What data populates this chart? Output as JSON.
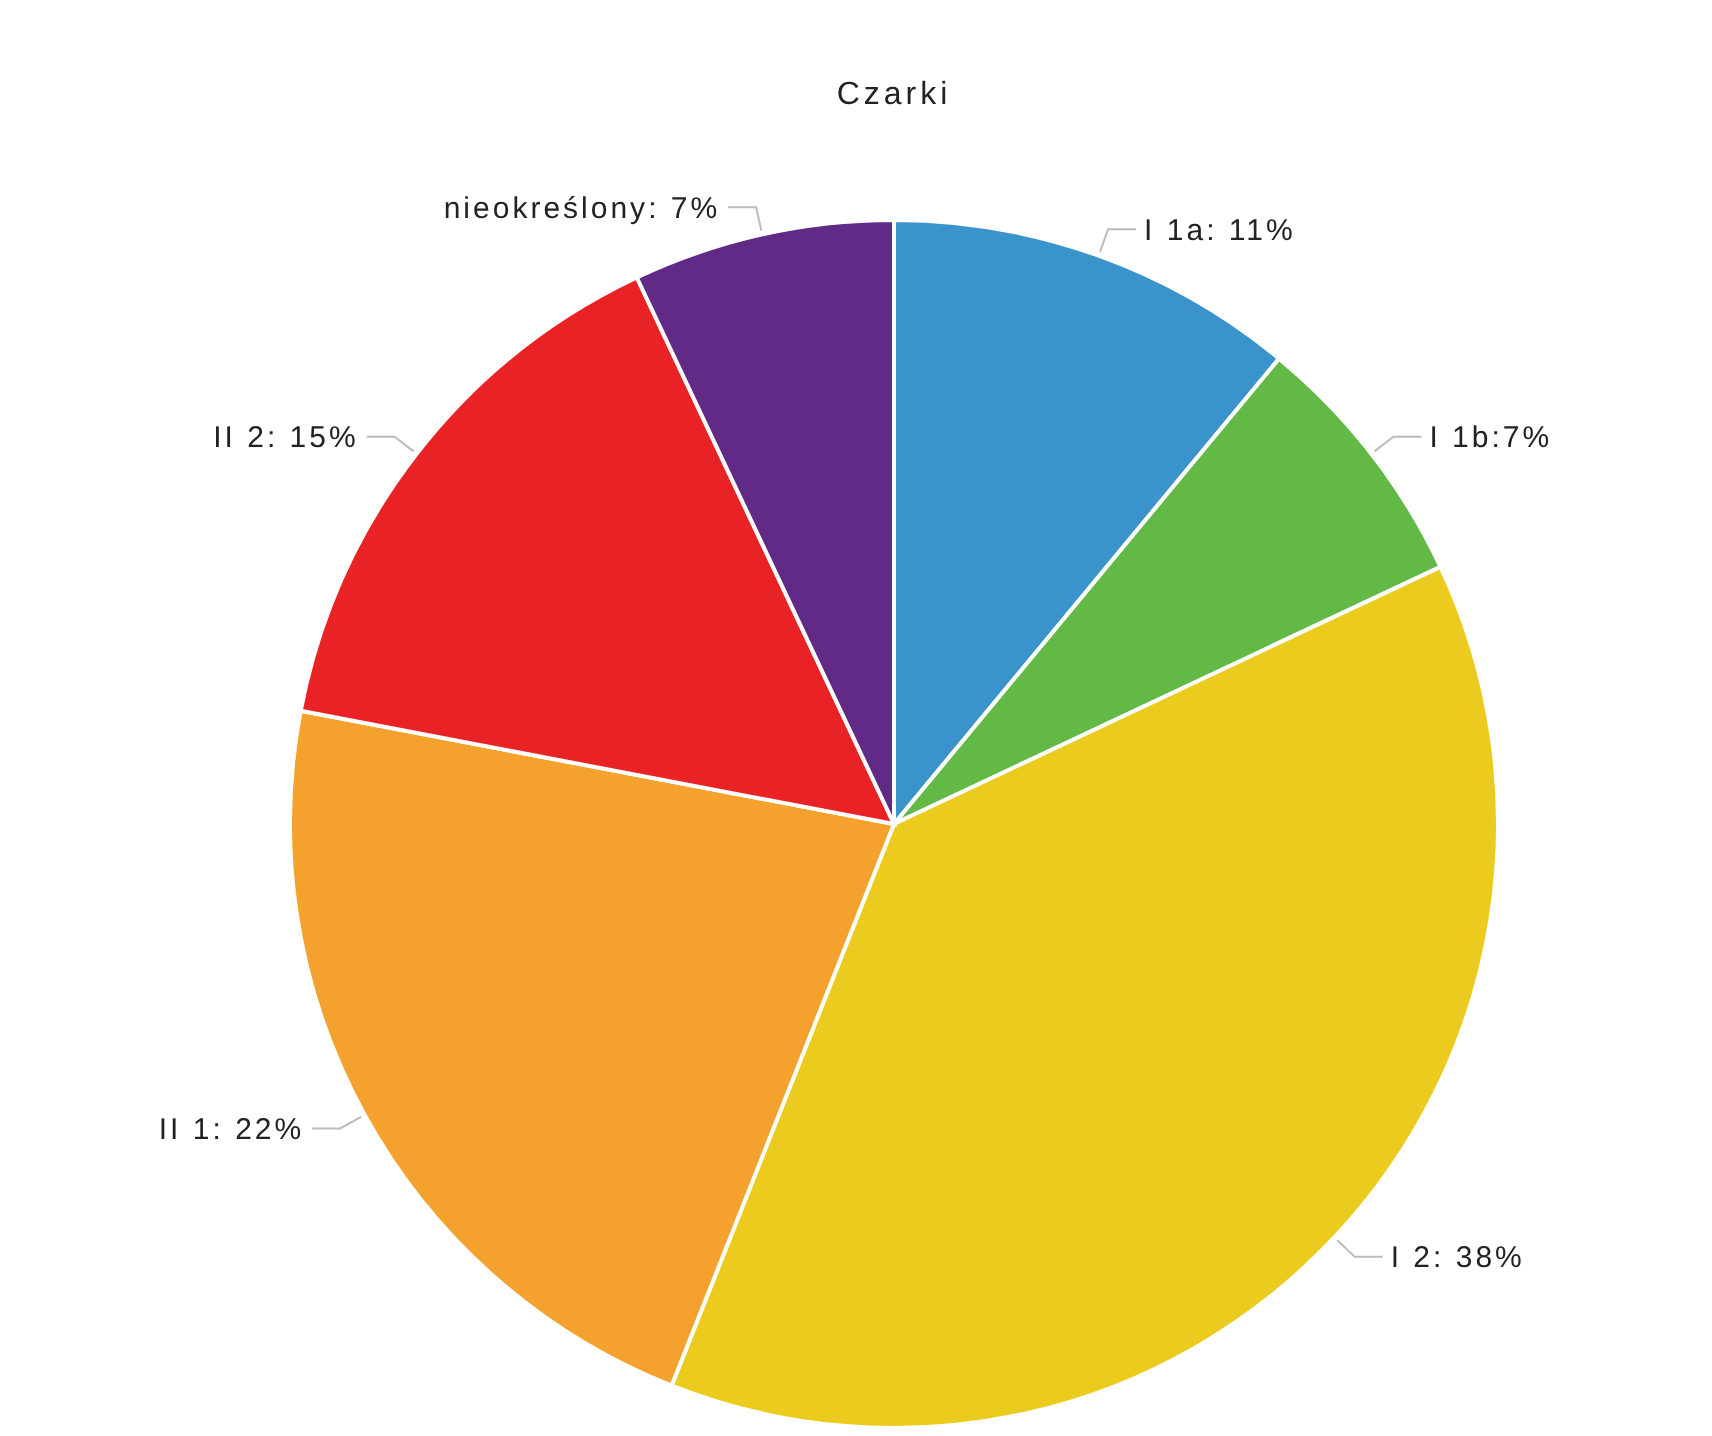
{
  "chart_data": {
    "type": "pie",
    "title": "Czarki",
    "categories": [
      "I 1a",
      "I 1b",
      "I 2",
      "II 1",
      "II 2",
      "nieokreślony"
    ],
    "values": [
      11,
      7,
      38,
      22,
      15,
      7
    ],
    "value_labels": [
      ": 11%",
      ":7%",
      ": 38%",
      ": 22%",
      ": 15%",
      ": 7%"
    ],
    "colors": [
      "#3a94cb",
      "#63b946",
      "#ebcb1e",
      "#f4a22d",
      "#e92325",
      "#622a87"
    ]
  }
}
